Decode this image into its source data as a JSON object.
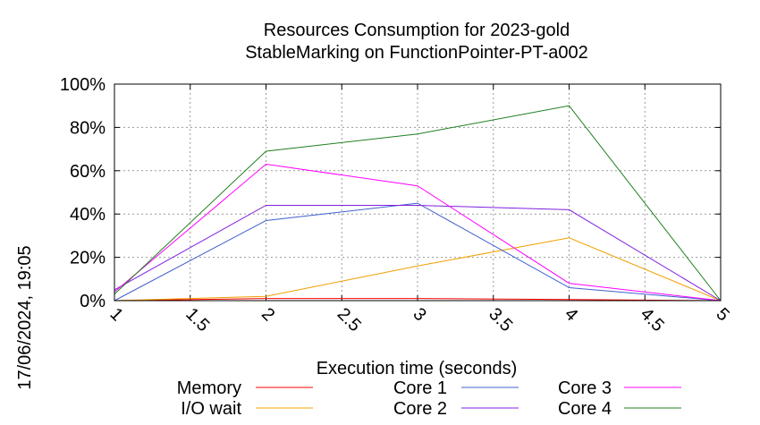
{
  "chart_data": {
    "type": "line",
    "title": "Resources Consumption for 2023-gold",
    "subtitle": "StableMarking on FunctionPointer-PT-a002",
    "xlabel": "Execution time (seconds)",
    "ylabel": "",
    "timestamp": "17/06/2024, 19:05",
    "xlim": [
      1,
      5
    ],
    "ylim": [
      0,
      100
    ],
    "x_ticks": [
      "1",
      "1.5",
      "2",
      "2.5",
      "3",
      "3.5",
      "4",
      "4.5",
      "5"
    ],
    "y_ticks": [
      "0%",
      "20%",
      "40%",
      "60%",
      "80%",
      "100%"
    ],
    "grid": true,
    "legend_position": "bottom",
    "x": [
      1,
      2,
      3,
      4,
      5
    ],
    "series": [
      {
        "name": "Memory",
        "color": "#ff0000",
        "values": [
          0,
          1,
          1,
          0.5,
          0
        ]
      },
      {
        "name": "I/O wait",
        "color": "#f0a000",
        "values": [
          0,
          2,
          16,
          29,
          0
        ]
      },
      {
        "name": "Core 1",
        "color": "#4060d0",
        "values": [
          0,
          37,
          45,
          6,
          0
        ]
      },
      {
        "name": "Core 2",
        "color": "#8020e0",
        "values": [
          5,
          44,
          44,
          42,
          0
        ]
      },
      {
        "name": "Core 3",
        "color": "#ff00ff",
        "values": [
          4,
          63,
          53,
          8,
          0
        ]
      },
      {
        "name": "Core 4",
        "color": "#208020",
        "values": [
          3,
          69,
          77,
          90,
          0
        ]
      }
    ]
  }
}
